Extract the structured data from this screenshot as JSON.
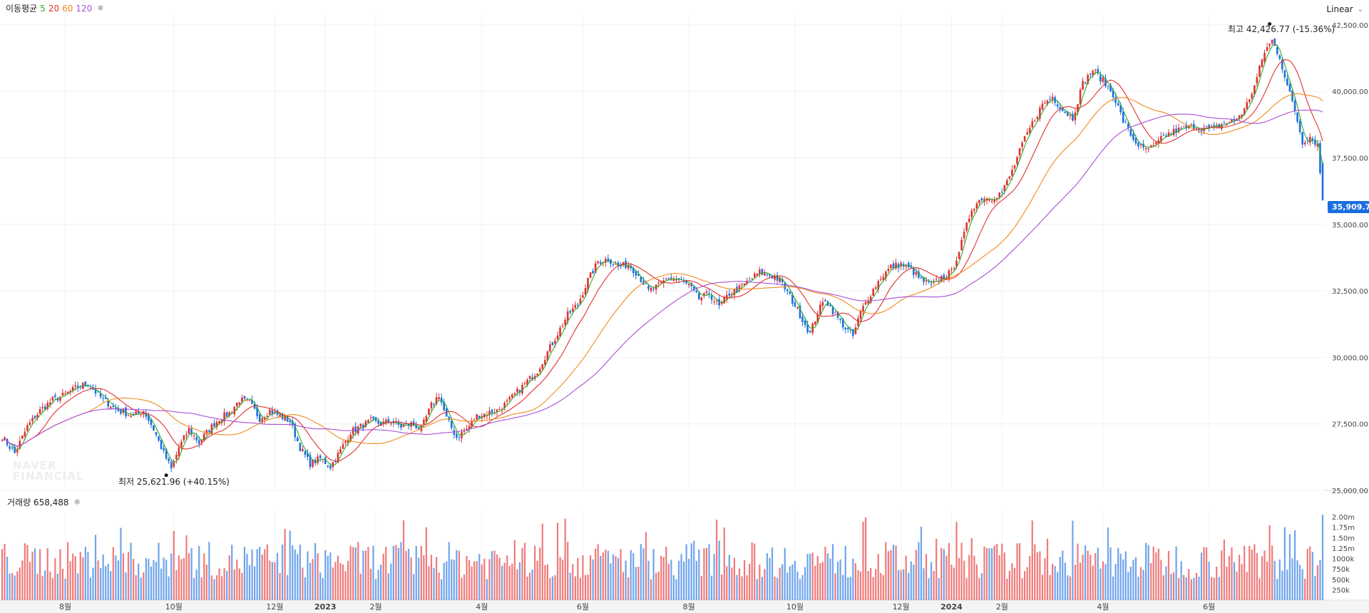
{
  "legend": {
    "title": "이동평균",
    "ma": [
      {
        "label": "5",
        "color": "#2eaa2e"
      },
      {
        "label": "20",
        "color": "#e03030"
      },
      {
        "label": "60",
        "color": "#f08a1c"
      },
      {
        "label": "120",
        "color": "#a94fd6"
      }
    ],
    "volume_label": "거래량 658,488"
  },
  "scale_toggle": "Linear",
  "last_price_label": "35,909.70",
  "annotations": {
    "high": "최고 42,426.77 (-15.36%)",
    "low": "최저 25,621.96 (+40.15%)"
  },
  "watermark": [
    "NAVER",
    "FINANCIAL"
  ],
  "chart_data": [
    {
      "type": "line",
      "subtype": "candlestick-with-moving-averages",
      "y_ticks": [
        "42,500.00",
        "40,000.00",
        "37,500.00",
        "35,000.00",
        "32,500.00",
        "30,000.00",
        "27,500.00",
        "25,000.00"
      ],
      "ylim": [
        25000,
        42900
      ],
      "x_ticks": [
        {
          "label": "8월",
          "x": 25
        },
        {
          "label": "10월",
          "x": 68
        },
        {
          "label": "12월",
          "x": 108
        },
        {
          "label": "2023",
          "x": 128
        },
        {
          "label": "2월",
          "x": 148
        },
        {
          "label": "4월",
          "x": 190
        },
        {
          "label": "6월",
          "x": 230
        },
        {
          "label": "8월",
          "x": 272
        },
        {
          "label": "10월",
          "x": 314
        },
        {
          "label": "12월",
          "x": 356
        },
        {
          "label": "2024",
          "x": 376
        },
        {
          "label": "2월",
          "x": 396
        },
        {
          "label": "4월",
          "x": 436
        },
        {
          "label": "6월",
          "x": 478
        }
      ],
      "x_range": [
        0,
        523
      ],
      "close_path": [
        [
          0,
          27000
        ],
        [
          5,
          26400
        ],
        [
          10,
          27400
        ],
        [
          15,
          28000
        ],
        [
          20,
          28400
        ],
        [
          25,
          28600
        ],
        [
          30,
          28900
        ],
        [
          34,
          29000
        ],
        [
          40,
          28400
        ],
        [
          46,
          28000
        ],
        [
          52,
          27800
        ],
        [
          56,
          28000
        ],
        [
          60,
          27300
        ],
        [
          64,
          26400
        ],
        [
          67,
          25800
        ],
        [
          70,
          26600
        ],
        [
          74,
          27300
        ],
        [
          78,
          26800
        ],
        [
          82,
          27300
        ],
        [
          86,
          27700
        ],
        [
          90,
          27900
        ],
        [
          94,
          28400
        ],
        [
          98,
          28300
        ],
        [
          102,
          27700
        ],
        [
          106,
          28000
        ],
        [
          110,
          27800
        ],
        [
          114,
          27600
        ],
        [
          118,
          26600
        ],
        [
          122,
          26000
        ],
        [
          126,
          26200
        ],
        [
          130,
          25900
        ],
        [
          134,
          26500
        ],
        [
          138,
          27200
        ],
        [
          142,
          27400
        ],
        [
          146,
          27600
        ],
        [
          150,
          27500
        ],
        [
          154,
          27600
        ],
        [
          158,
          27400
        ],
        [
          162,
          27500
        ],
        [
          166,
          27300
        ],
        [
          170,
          28200
        ],
        [
          173,
          28600
        ],
        [
          176,
          27700
        ],
        [
          180,
          27000
        ],
        [
          184,
          27300
        ],
        [
          188,
          27800
        ],
        [
          192,
          27900
        ],
        [
          196,
          28000
        ],
        [
          200,
          28300
        ],
        [
          204,
          28700
        ],
        [
          208,
          29100
        ],
        [
          212,
          29500
        ],
        [
          216,
          30200
        ],
        [
          220,
          30900
        ],
        [
          224,
          31600
        ],
        [
          228,
          32000
        ],
        [
          232,
          32900
        ],
        [
          236,
          33600
        ],
        [
          240,
          33700
        ],
        [
          244,
          33400
        ],
        [
          248,
          33500
        ],
        [
          252,
          33100
        ],
        [
          256,
          32500
        ],
        [
          260,
          32700
        ],
        [
          264,
          33000
        ],
        [
          268,
          32900
        ],
        [
          272,
          32700
        ],
        [
          276,
          32200
        ],
        [
          280,
          32400
        ],
        [
          284,
          31900
        ],
        [
          288,
          32400
        ],
        [
          292,
          32600
        ],
        [
          296,
          32900
        ],
        [
          300,
          33200
        ],
        [
          304,
          33100
        ],
        [
          308,
          32900
        ],
        [
          312,
          32300
        ],
        [
          316,
          31600
        ],
        [
          320,
          30900
        ],
        [
          323,
          31700
        ],
        [
          326,
          32200
        ],
        [
          330,
          31600
        ],
        [
          334,
          31100
        ],
        [
          337,
          30800
        ],
        [
          340,
          31700
        ],
        [
          344,
          32400
        ],
        [
          348,
          33000
        ],
        [
          352,
          33400
        ],
        [
          356,
          33500
        ],
        [
          360,
          33300
        ],
        [
          364,
          32900
        ],
        [
          368,
          32700
        ],
        [
          372,
          33000
        ],
        [
          376,
          33200
        ],
        [
          380,
          34300
        ],
        [
          384,
          35600
        ],
        [
          388,
          36000
        ],
        [
          392,
          36000
        ],
        [
          396,
          36200
        ],
        [
          400,
          37000
        ],
        [
          404,
          38000
        ],
        [
          408,
          38800
        ],
        [
          412,
          39500
        ],
        [
          416,
          39800
        ],
        [
          420,
          39300
        ],
        [
          424,
          39000
        ],
        [
          428,
          40300
        ],
        [
          432,
          40800
        ],
        [
          436,
          40400
        ],
        [
          440,
          39900
        ],
        [
          444,
          38900
        ],
        [
          448,
          38200
        ],
        [
          452,
          37800
        ],
        [
          456,
          37900
        ],
        [
          460,
          38300
        ],
        [
          464,
          38500
        ],
        [
          468,
          38600
        ],
        [
          472,
          38700
        ],
        [
          476,
          38600
        ],
        [
          480,
          38600
        ],
        [
          484,
          38800
        ],
        [
          488,
          38900
        ],
        [
          492,
          39300
        ],
        [
          496,
          40200
        ],
        [
          500,
          41500
        ],
        [
          503,
          41900
        ],
        [
          506,
          41300
        ],
        [
          509,
          40200
        ],
        [
          512,
          39300
        ],
        [
          515,
          38100
        ],
        [
          518,
          38300
        ],
        [
          521,
          38000
        ],
        [
          523,
          35909.7
        ]
      ],
      "high": {
        "x": 502,
        "value": 42426.77
      },
      "low": {
        "x": 65,
        "value": 25621.96
      },
      "series": [
        {
          "name": "5",
          "color": "#2eaa2e",
          "smoothing": 3
        },
        {
          "name": "20",
          "color": "#e03030",
          "smoothing": 12
        },
        {
          "name": "60",
          "color": "#f08a1c",
          "smoothing": 34
        },
        {
          "name": "120",
          "color": "#a94fd6",
          "smoothing": 60
        }
      ],
      "up_color": "#e03030",
      "down_color": "#1a6fe0",
      "grid": true
    },
    {
      "type": "bar",
      "subtype": "volume",
      "y_ticks": [
        "2.00m",
        "1.75m",
        "1.50m",
        "1.25m",
        "1000k",
        "750k",
        "500k",
        "250k"
      ],
      "ylim": [
        0,
        2120000
      ],
      "typical_range": [
        500000,
        1400000
      ],
      "last_value": 658488,
      "up_color": "#ef7a7a",
      "down_color": "#6ea4ec"
    }
  ]
}
